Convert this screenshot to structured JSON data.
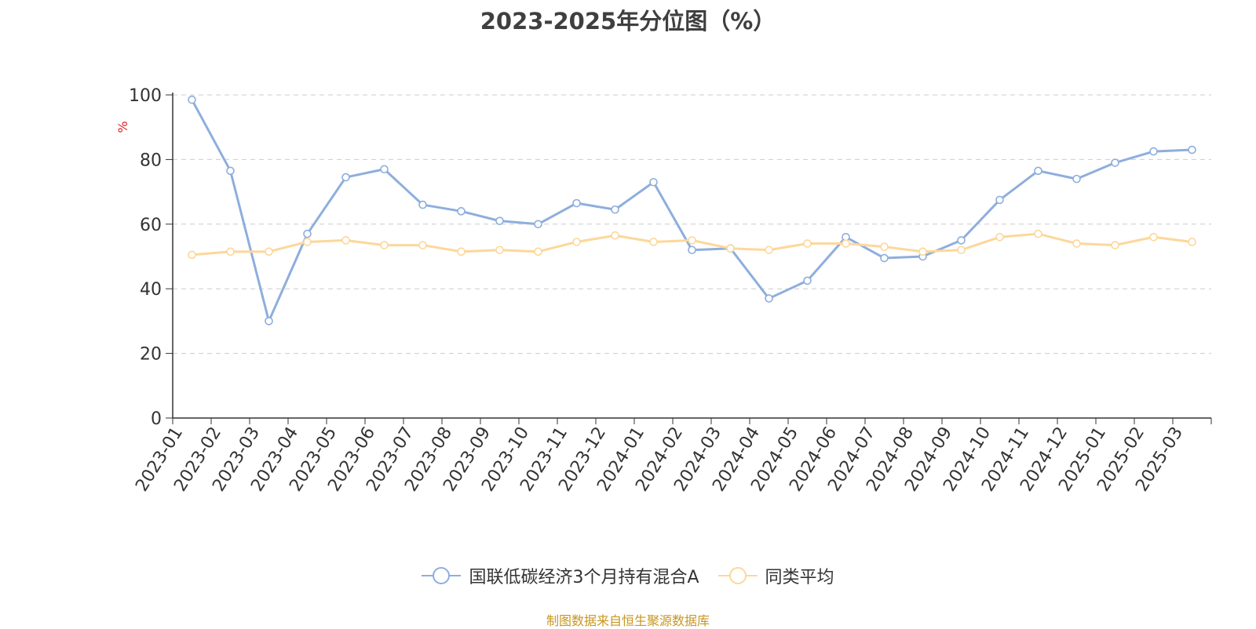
{
  "header": {
    "title": "2023-2025年分位图（%）"
  },
  "footer": {
    "source": "制图数据来自恒生聚源数据库"
  },
  "colors": {
    "series1": "#8eaedd",
    "series2": "#fdd79a",
    "axis": "#333333",
    "grid": "#cccccc",
    "unit": "#e02020"
  },
  "chart_data": {
    "type": "line",
    "title": "2023-2025年分位图（%）",
    "ylabel": "%",
    "ylim": [
      0,
      100
    ],
    "yticks": [
      0,
      20,
      40,
      60,
      80,
      100
    ],
    "grid": true,
    "legend_position": "bottom",
    "categories": [
      "2023-01",
      "2023-02",
      "2023-03",
      "2023-04",
      "2023-05",
      "2023-06",
      "2023-07",
      "2023-08",
      "2023-09",
      "2023-10",
      "2023-11",
      "2023-12",
      "2024-01",
      "2024-02",
      "2024-03",
      "2024-04",
      "2024-05",
      "2024-06",
      "2024-07",
      "2024-08",
      "2024-09",
      "2024-10",
      "2024-11",
      "2024-12",
      "2025-01",
      "2025-02",
      "2025-03"
    ],
    "series": [
      {
        "name": "国联低碳经济3个月持有混合A",
        "values": [
          98.5,
          76.5,
          30,
          57,
          74.5,
          77,
          66,
          64,
          61,
          60,
          66.5,
          64.5,
          73,
          52,
          52.5,
          37,
          42.5,
          56,
          49.5,
          50,
          55,
          67.5,
          76.5,
          74,
          79,
          82.5,
          83
        ]
      },
      {
        "name": "同类平均",
        "values": [
          50.5,
          51.5,
          51.5,
          54.5,
          55,
          53.5,
          53.5,
          51.5,
          52,
          51.5,
          54.5,
          56.5,
          54.5,
          55,
          52.5,
          52,
          54,
          54,
          53,
          51.5,
          52,
          56,
          57,
          54,
          53.5,
          56,
          54.5
        ]
      }
    ]
  }
}
